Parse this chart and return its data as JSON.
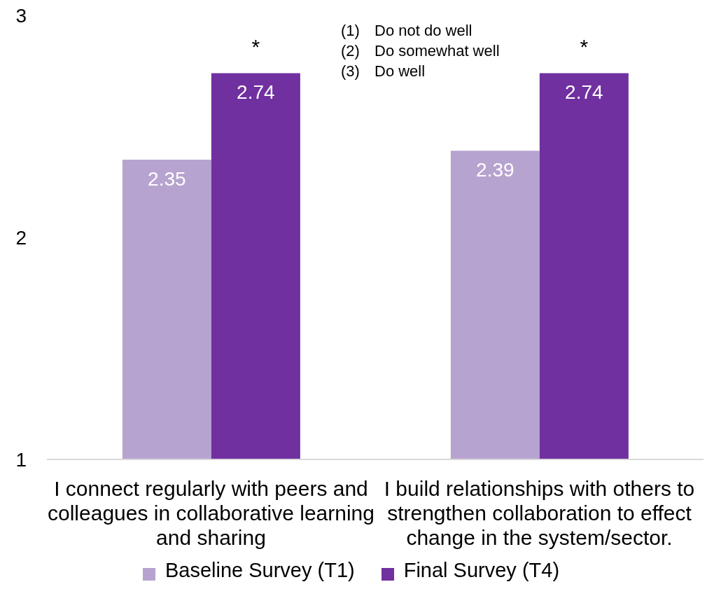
{
  "chart_data": {
    "type": "bar",
    "categories": [
      "I connect regularly with peers and colleagues in collaborative learning and sharing",
      "I build relationships with others to strengthen collaboration to effect change in the system/sector."
    ],
    "series": [
      {
        "name": "Baseline Survey (T1)",
        "color": "#b7a3cf",
        "values": [
          2.35,
          2.39
        ]
      },
      {
        "name": "Final Survey (T4)",
        "color": "#7030a0",
        "values": [
          2.74,
          2.74
        ]
      }
    ],
    "ylim": [
      1,
      3
    ],
    "yticks": [
      1,
      2,
      3
    ],
    "data_labels": true,
    "legend": "bottom",
    "annotations": [
      "(1) Do not do well",
      "(2) Do somewhat well",
      "(3) Do well",
      {
        "text": "*",
        "x": "I connect regularly with peers and colleagues in collaborative learning and sharing",
        "y": 2.74
      },
      {
        "text": "*",
        "x": "I build relationships with others to strengthen collaboration to effect change in the system/sector.",
        "y": 2.74
      }
    ]
  }
}
